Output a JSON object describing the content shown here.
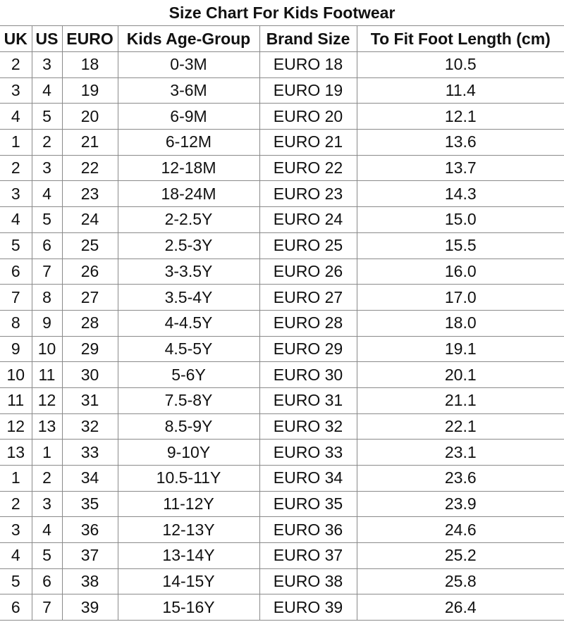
{
  "title": "Size Chart For Kids Footwear",
  "columns": [
    "UK",
    "US",
    "EURO",
    "Kids Age-Group",
    "Brand Size",
    "To Fit Foot Length (cm)"
  ],
  "rows": [
    [
      "2",
      "3",
      "18",
      "0-3M",
      "EURO 18",
      "10.5"
    ],
    [
      "3",
      "4",
      "19",
      "3-6M",
      "EURO 19",
      "11.4"
    ],
    [
      "4",
      "5",
      "20",
      "6-9M",
      "EURO 20",
      "12.1"
    ],
    [
      "1",
      "2",
      "21",
      "6-12M",
      "EURO 21",
      "13.6"
    ],
    [
      "2",
      "3",
      "22",
      "12-18M",
      "EURO 22",
      "13.7"
    ],
    [
      "3",
      "4",
      "23",
      "18-24M",
      "EURO 23",
      "14.3"
    ],
    [
      "4",
      "5",
      "24",
      "2-2.5Y",
      "EURO 24",
      "15.0"
    ],
    [
      "5",
      "6",
      "25",
      "2.5-3Y",
      "EURO 25",
      "15.5"
    ],
    [
      "6",
      "7",
      "26",
      "3-3.5Y",
      "EURO 26",
      "16.0"
    ],
    [
      "7",
      "8",
      "27",
      "3.5-4Y",
      "EURO 27",
      "17.0"
    ],
    [
      "8",
      "9",
      "28",
      "4-4.5Y",
      "EURO 28",
      "18.0"
    ],
    [
      "9",
      "10",
      "29",
      "4.5-5Y",
      "EURO 29",
      "19.1"
    ],
    [
      "10",
      "11",
      "30",
      "5-6Y",
      "EURO 30",
      "20.1"
    ],
    [
      "11",
      "12",
      "31",
      "7.5-8Y",
      "EURO 31",
      "21.1"
    ],
    [
      "12",
      "13",
      "32",
      "8.5-9Y",
      "EURO 32",
      "22.1"
    ],
    [
      "13",
      "1",
      "33",
      "9-10Y",
      "EURO 33",
      "23.1"
    ],
    [
      "1",
      "2",
      "34",
      "10.5-11Y",
      "EURO 34",
      "23.6"
    ],
    [
      "2",
      "3",
      "35",
      "11-12Y",
      "EURO 35",
      "23.9"
    ],
    [
      "3",
      "4",
      "36",
      "12-13Y",
      "EURO 36",
      "24.6"
    ],
    [
      "4",
      "5",
      "37",
      "13-14Y",
      "EURO 37",
      "25.2"
    ],
    [
      "5",
      "6",
      "38",
      "14-15Y",
      "EURO 38",
      "25.8"
    ],
    [
      "6",
      "7",
      "39",
      "15-16Y",
      "EURO 39",
      "26.4"
    ]
  ]
}
